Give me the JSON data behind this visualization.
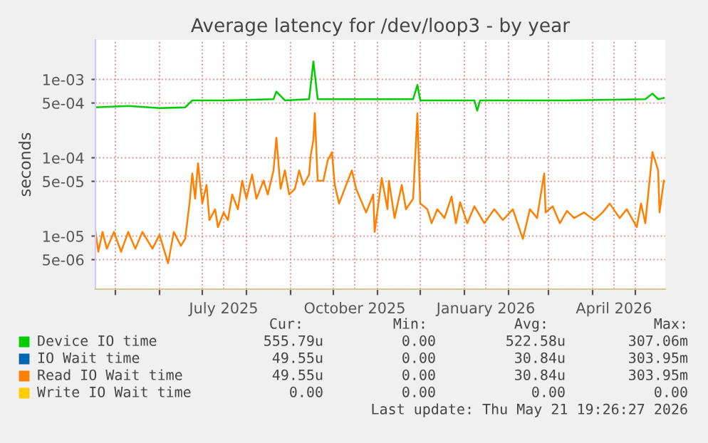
{
  "chart_data": {
    "type": "line",
    "title": "Average latency for /dev/loop3 - by year",
    "ylabel": "seconds",
    "log": "y",
    "grid": true,
    "legend": "bottom",
    "marker": "none",
    "line_style": "solid",
    "xlim": [
      "2025-04-17",
      "2026-05-22"
    ],
    "xticks": [
      {
        "value": "2025-05-01",
        "label": null
      },
      {
        "value": "2025-06-01",
        "label": null
      },
      {
        "value": "2025-07-01",
        "label": null
      },
      {
        "value": "2025-07-16",
        "label": "July 2025"
      },
      {
        "value": "2025-08-01",
        "label": null
      },
      {
        "value": "2025-09-01",
        "label": null
      },
      {
        "value": "2025-10-01",
        "label": null
      },
      {
        "value": "2025-10-16",
        "label": "October 2025"
      },
      {
        "value": "2025-11-01",
        "label": null
      },
      {
        "value": "2025-12-01",
        "label": null
      },
      {
        "value": "2026-01-01",
        "label": null
      },
      {
        "value": "2026-01-16",
        "label": "January 2026"
      },
      {
        "value": "2026-02-01",
        "label": null
      },
      {
        "value": "2026-03-01",
        "label": null
      },
      {
        "value": "2026-04-01",
        "label": null
      },
      {
        "value": "2026-04-16",
        "label": "April 2026"
      },
      {
        "value": "2026-05-01",
        "label": null
      }
    ],
    "ylim": [
      2.1e-06,
      0.0032
    ],
    "yticks": [
      {
        "value": 5e-06,
        "label": "5e-06"
      },
      {
        "value": 1e-05,
        "label": "1e-05"
      },
      {
        "value": 5e-05,
        "label": "5e-05"
      },
      {
        "value": 0.0001,
        "label": "1e-04"
      },
      {
        "value": 0.0005,
        "label": "5e-04"
      },
      {
        "value": 0.001,
        "label": "1e-03"
      }
    ],
    "series": [
      {
        "name": "Device IO time",
        "color": "#00cc00",
        "x": [
          "2025-04-17",
          "2025-05-10",
          "2025-06-01",
          "2025-06-19",
          "2025-06-24",
          "2025-07-16",
          "2025-08-20",
          "2025-08-22",
          "2025-08-28",
          "2025-09-14",
          "2025-09-17",
          "2025-09-20",
          "2025-10-15",
          "2025-11-26",
          "2025-11-29",
          "2025-12-01",
          "2026-01-08",
          "2026-01-10",
          "2026-01-12",
          "2026-03-14",
          "2026-05-08",
          "2026-05-13",
          "2026-05-17",
          "2026-05-21"
        ],
        "values": [
          0.00044,
          0.00046,
          0.00043,
          0.00044,
          0.00054,
          0.00054,
          0.00056,
          0.0007,
          0.00054,
          0.00056,
          0.0017,
          0.00056,
          0.00056,
          0.00056,
          0.00085,
          0.00054,
          0.00054,
          0.0004,
          0.00054,
          0.00054,
          0.00056,
          0.00066,
          0.00056,
          0.00058
        ]
      },
      {
        "name": "IO Wait time",
        "color": "#0066b3"
      },
      {
        "name": "Read IO Wait time",
        "color": "#ff8000",
        "x": [
          "2025-04-17",
          "2025-04-19",
          "2025-04-22",
          "2025-04-25",
          "2025-04-30",
          "2025-05-05",
          "2025-05-10",
          "2025-05-15",
          "2025-05-20",
          "2025-05-27",
          "2025-06-01",
          "2025-06-07",
          "2025-06-11",
          "2025-06-16",
          "2025-06-19",
          "2025-06-22",
          "2025-06-24",
          "2025-06-26",
          "2025-06-28",
          "2025-07-01",
          "2025-07-04",
          "2025-07-06",
          "2025-07-10",
          "2025-07-12",
          "2025-07-16",
          "2025-07-19",
          "2025-07-22",
          "2025-07-26",
          "2025-07-29",
          "2025-08-01",
          "2025-08-05",
          "2025-08-08",
          "2025-08-13",
          "2025-08-16",
          "2025-08-20",
          "2025-08-22",
          "2025-08-25",
          "2025-08-28",
          "2025-08-31",
          "2025-09-04",
          "2025-09-07",
          "2025-09-10",
          "2025-09-14",
          "2025-09-15",
          "2025-09-17",
          "2025-09-18",
          "2025-09-20",
          "2025-09-24",
          "2025-09-27",
          "2025-09-30",
          "2025-10-02",
          "2025-10-05",
          "2025-10-10",
          "2025-10-14",
          "2025-10-17",
          "2025-10-24",
          "2025-10-29",
          "2025-10-30",
          "2025-11-04",
          "2025-11-08",
          "2025-11-09",
          "2025-11-13",
          "2025-11-18",
          "2025-11-21",
          "2025-11-26",
          "2025-11-29",
          "2025-12-01",
          "2025-12-06",
          "2025-12-09",
          "2025-12-13",
          "2025-12-18",
          "2025-12-23",
          "2025-12-26",
          "2025-12-29",
          "2026-01-03",
          "2026-01-08",
          "2026-01-15",
          "2026-01-22",
          "2026-01-28",
          "2026-02-04",
          "2026-02-11",
          "2026-02-16",
          "2026-02-21",
          "2026-02-26",
          "2026-02-27",
          "2026-03-04",
          "2026-03-09",
          "2026-03-14",
          "2026-03-19",
          "2026-03-26",
          "2026-04-02",
          "2026-04-08",
          "2026-04-13",
          "2026-04-20",
          "2026-04-25",
          "2026-05-02",
          "2026-05-05",
          "2026-05-08",
          "2026-05-13",
          "2026-05-17",
          "2026-05-18",
          "2026-05-21"
        ],
        "values": [
          1.18e-05,
          6.3e-06,
          1.13e-05,
          6.9e-06,
          1.13e-05,
          6.3e-06,
          1.13e-05,
          6.9e-06,
          1.13e-05,
          6.9e-06,
          1.04e-05,
          4.5e-06,
          1.13e-05,
          7.5e-06,
          9.2e-06,
          2.6e-05,
          6.3e-05,
          3e-05,
          8.5e-05,
          2.6e-05,
          4.5e-05,
          1.6e-05,
          2.2e-05,
          1.3e-05,
          2e-05,
          1.6e-05,
          3.4e-05,
          2.2e-05,
          5.1e-05,
          3e-05,
          6.1e-05,
          3e-05,
          5.1e-05,
          3.4e-05,
          6.9e-05,
          0.00018,
          4e-05,
          6.9e-05,
          3.4e-05,
          4e-05,
          6.9e-05,
          4.5e-05,
          6.1e-05,
          0.000104,
          0.00017,
          0.00037,
          5.1e-05,
          5.1e-05,
          9.2e-05,
          0.000118,
          4.5e-05,
          2.6e-05,
          4.5e-05,
          6.9e-05,
          4e-05,
          2e-05,
          3.4e-05,
          1.13e-05,
          5.5e-05,
          2.2e-05,
          5.1e-05,
          1.7e-05,
          4.5e-05,
          2.2e-05,
          3e-05,
          0.00037,
          2.6e-05,
          2.2e-05,
          1.46e-05,
          2.2e-05,
          1.7e-05,
          3.2e-05,
          1.46e-05,
          2.7e-05,
          1.46e-05,
          2.4e-05,
          1.46e-05,
          2.2e-05,
          1.6e-05,
          2.2e-05,
          9.2e-06,
          2.2e-05,
          1.7e-05,
          6.3e-05,
          2e-05,
          2.4e-05,
          1.46e-05,
          2.1e-05,
          1.7e-05,
          2e-05,
          1.6e-05,
          2e-05,
          2.6e-05,
          1.7e-05,
          2.2e-05,
          1.3e-05,
          2.6e-05,
          1.46e-05,
          0.000118,
          6.9e-05,
          2e-05,
          5.1e-05
        ]
      },
      {
        "name": "Write IO Wait time",
        "color": "#ffcc00"
      }
    ],
    "annotations": [
      "Cur:",
      "Min:",
      "Avg:",
      "Max:",
      "555.79u",
      "0.00",
      "522.58u",
      "307.06m",
      "49.55u",
      "0.00",
      "30.84u",
      "303.95m",
      "49.55u",
      "0.00",
      "30.84u",
      "303.95m",
      "0.00",
      "0.00",
      "0.00",
      "0.00",
      "Last update: Thu May 21 19:26:27 2026"
    ]
  }
}
